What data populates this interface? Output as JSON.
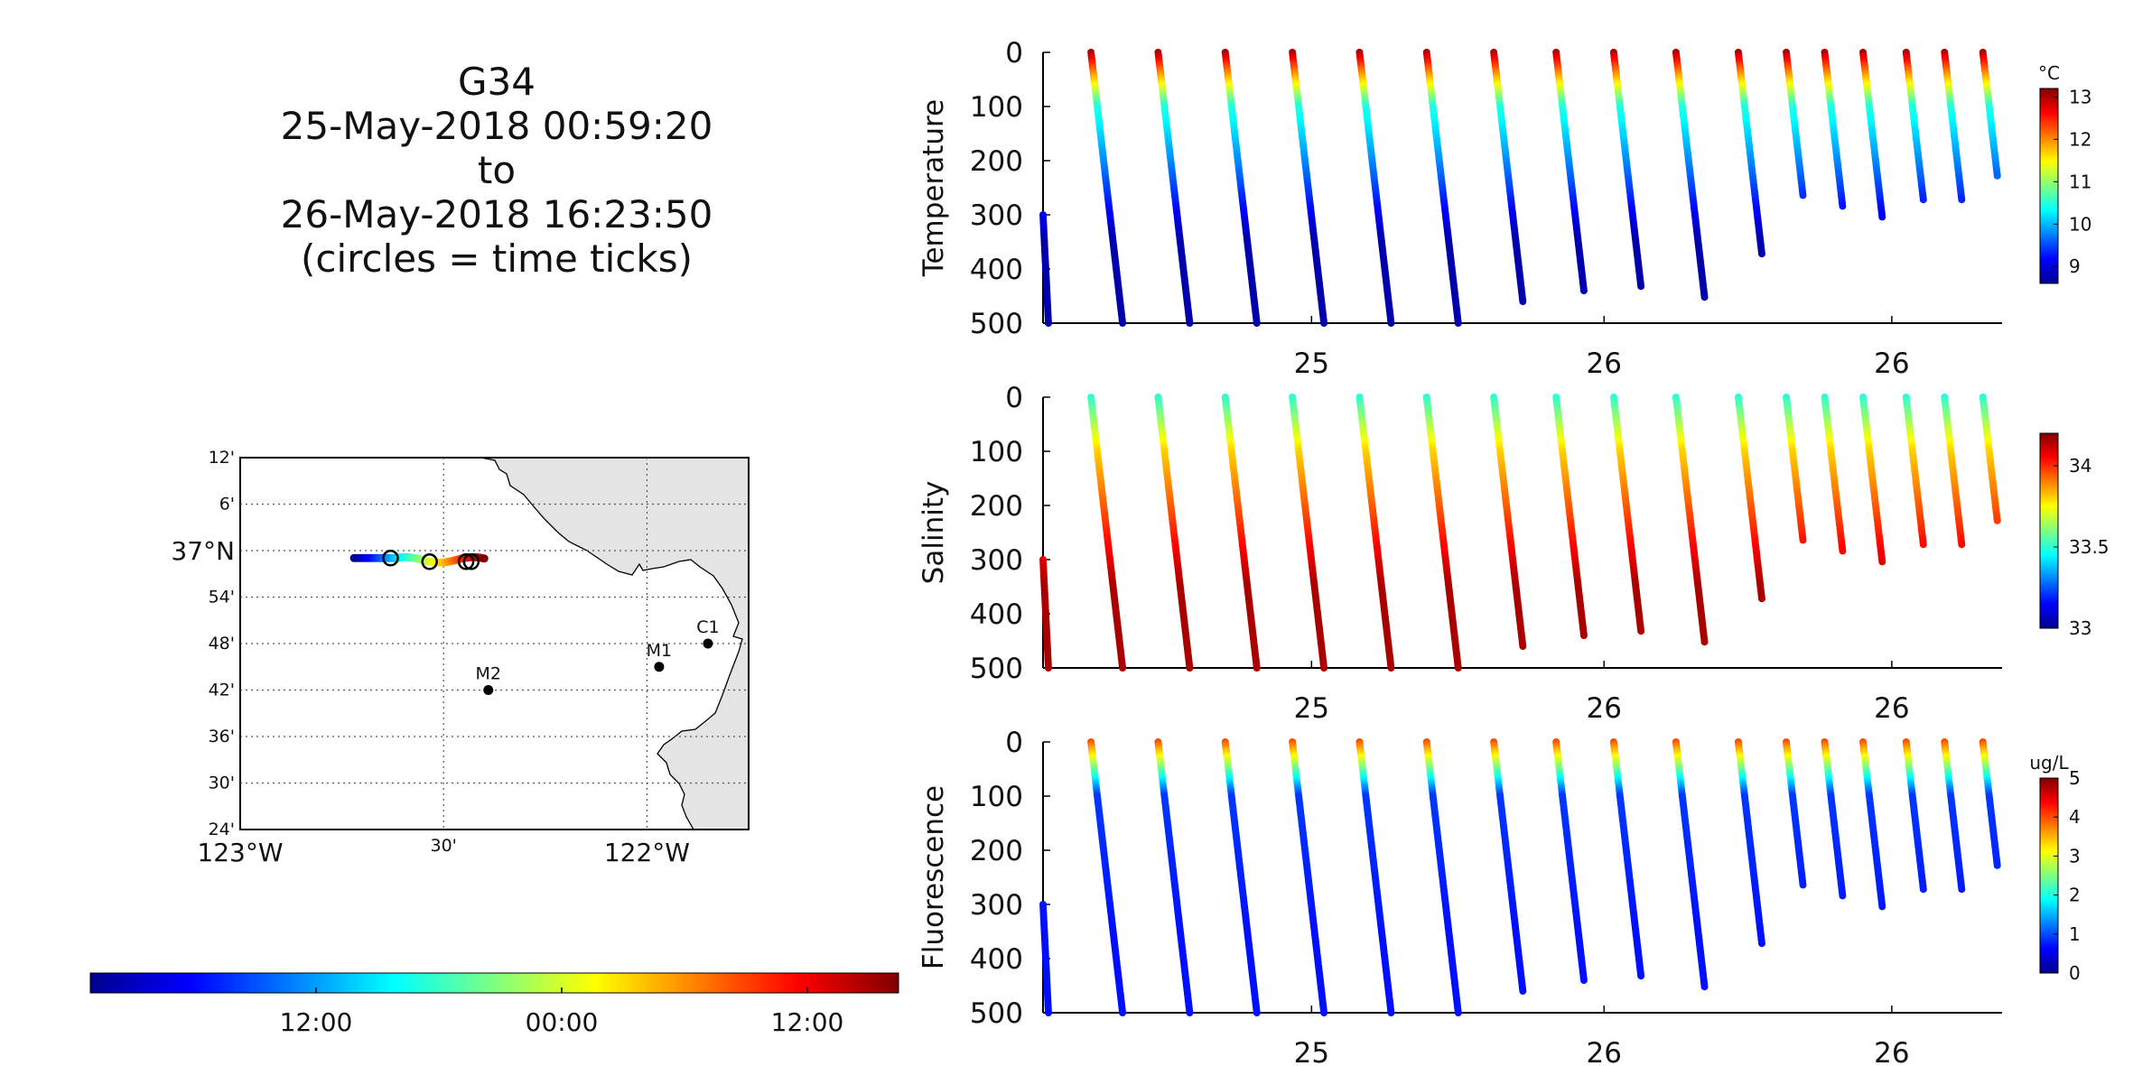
{
  "title_lines": [
    "G34",
    "25-May-2018 00:59:20",
    "to",
    "26-May-2018 16:23:50",
    "(circles = time ticks)"
  ],
  "chart_data": [
    {
      "type": "map",
      "lat_ticks": [
        "12'",
        "6'",
        "37ºN",
        "54'",
        "48'",
        "42'",
        "36'",
        "30'",
        "24'"
      ],
      "lon_ticks": [
        "123ºW",
        "30'",
        "122ºW"
      ],
      "stations": [
        {
          "name": "C1",
          "lon": -121.85,
          "lat": 36.8
        },
        {
          "name": "M1",
          "lon": -121.97,
          "lat": 36.75
        },
        {
          "name": "M2",
          "lon": -122.39,
          "lat": 36.7
        }
      ],
      "glider_track": {
        "lon_start": -122.72,
        "lon_end": -122.4,
        "lat": 36.98,
        "time_tick_circles": 4
      },
      "time_colorbar_ticks": [
        "12:00",
        "00:00",
        "12:00"
      ]
    },
    {
      "type": "scatter",
      "ylabel": "Temperature",
      "x_tick_labels": [
        "25",
        "26",
        "26"
      ],
      "y_ticks": [
        0,
        100,
        200,
        300,
        400,
        500
      ],
      "ylim": [
        0,
        500
      ],
      "colorbar": {
        "unit": "°C",
        "min": 8.6,
        "max": 13.2,
        "ticks": [
          "13",
          "12",
          "11",
          "10",
          "9"
        ],
        "tick_values": [
          13,
          12,
          11,
          10,
          9
        ]
      },
      "profile_values": {
        "surface": 13,
        "thermocline_100m": 10.5,
        "deep": 8.8
      }
    },
    {
      "type": "scatter",
      "ylabel": "Salinity",
      "x_tick_labels": [
        "25",
        "26",
        "26"
      ],
      "y_ticks": [
        0,
        100,
        200,
        300,
        400,
        500
      ],
      "ylim": [
        0,
        500
      ],
      "colorbar": {
        "unit": "",
        "min": 33.0,
        "max": 34.2,
        "ticks": [
          "34",
          "33.5",
          "33"
        ],
        "tick_values": [
          34,
          33.5,
          33
        ]
      },
      "profile_values": {
        "surface": 33.5,
        "thermocline_100m": 33.8,
        "deep": 34.15
      }
    },
    {
      "type": "scatter",
      "ylabel": "Fluorescence",
      "x_tick_labels": [
        "25",
        "26",
        "26"
      ],
      "y_ticks": [
        0,
        100,
        200,
        300,
        400,
        500
      ],
      "ylim": [
        0,
        500
      ],
      "colorbar": {
        "unit": "ug/L",
        "min": 0,
        "max": 5,
        "ticks": [
          "5",
          "4",
          "3",
          "2",
          "1",
          "0"
        ],
        "tick_values": [
          5,
          4,
          3,
          2,
          1,
          0
        ]
      },
      "profile_values": {
        "surface": 4,
        "thermocline_100m": 0.9,
        "deep": 0.7
      }
    }
  ],
  "dives": [
    {
      "t": 0.0,
      "start_depth": 300,
      "end_depth": 500
    },
    {
      "t": 0.05,
      "start_depth": 0,
      "end_depth": 500
    },
    {
      "t": 0.12,
      "start_depth": 0,
      "end_depth": 500
    },
    {
      "t": 0.19,
      "start_depth": 0,
      "end_depth": 500
    },
    {
      "t": 0.26,
      "start_depth": 0,
      "end_depth": 500
    },
    {
      "t": 0.33,
      "start_depth": 0,
      "end_depth": 500
    },
    {
      "t": 0.4,
      "start_depth": 0,
      "end_depth": 500
    },
    {
      "t": 0.47,
      "start_depth": 0,
      "end_depth": 460
    },
    {
      "t": 0.535,
      "start_depth": 0,
      "end_depth": 440
    },
    {
      "t": 0.595,
      "start_depth": 0,
      "end_depth": 435
    },
    {
      "t": 0.66,
      "start_depth": 0,
      "end_depth": 455
    },
    {
      "t": 0.725,
      "start_depth": 0,
      "end_depth": 375
    },
    {
      "t": 0.775,
      "start_depth": 0,
      "end_depth": 265
    },
    {
      "t": 0.815,
      "start_depth": 0,
      "end_depth": 285
    },
    {
      "t": 0.855,
      "start_depth": 0,
      "end_depth": 305
    },
    {
      "t": 0.9,
      "start_depth": 0,
      "end_depth": 275
    },
    {
      "t": 0.94,
      "start_depth": 0,
      "end_depth": 275
    },
    {
      "t": 0.98,
      "start_depth": 0,
      "end_depth": 230
    }
  ]
}
